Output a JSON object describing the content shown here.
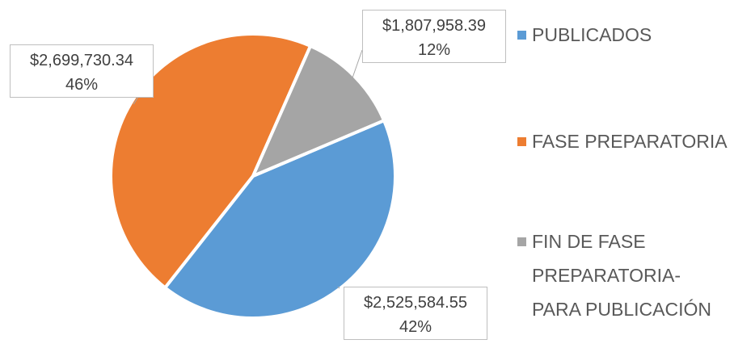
{
  "chart_data": {
    "type": "pie",
    "categories": [
      "PUBLICADOS",
      "FASE PREPARATORIA",
      "FIN DE FASE\nPREPARATORIA-\nPARA PUBLICACIÓN"
    ],
    "values": [
      42,
      46,
      12
    ],
    "value_labels": [
      "42%",
      "46%",
      "12%"
    ],
    "amounts": [
      2525584.55,
      2699730.34,
      1807958.39
    ],
    "amount_labels": [
      "$2,525,584.55",
      "$2,699,730.34",
      "$1,807,958.39"
    ],
    "colors": [
      "#5b9bd5",
      "#ed7d31",
      "#a5a5a5"
    ],
    "legend": "right"
  }
}
